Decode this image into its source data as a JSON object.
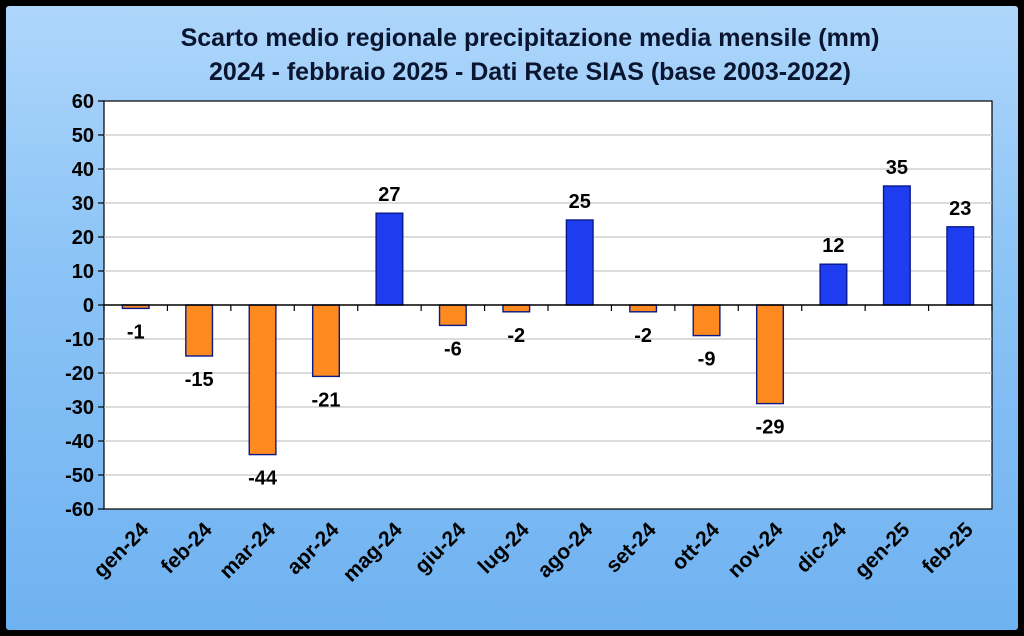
{
  "chart_data": {
    "type": "bar",
    "title": "Scarto medio regionale precipitazione media mensile (mm)",
    "subtitle": "2024 - febbraio 2025 - Dati Rete SIAS (base 2003-2022)",
    "categories": [
      "gen-24",
      "feb-24",
      "mar-24",
      "apr-24",
      "mag-24",
      "giu-24",
      "lug-24",
      "ago-24",
      "set-24",
      "ott-24",
      "nov-24",
      "dic-24",
      "gen-25",
      "feb-25"
    ],
    "values": [
      -1,
      -15,
      -44,
      -21,
      27,
      -6,
      -2,
      25,
      -2,
      -9,
      -29,
      12,
      35,
      23
    ],
    "data_labels": [
      "-1",
      "-15",
      "-44",
      "-21",
      "27",
      "-6",
      "-2",
      "25",
      "-2",
      "-9",
      "-29",
      "12",
      "35",
      "23"
    ],
    "xlabel": "",
    "ylabel": "",
    "ylim": [
      -60,
      60
    ],
    "yticks": [
      60,
      50,
      40,
      30,
      20,
      10,
      0,
      -10,
      -20,
      -30,
      -40,
      -50,
      -60
    ],
    "grid": true,
    "legend": "none",
    "colors": {
      "positive": "#1f3df0",
      "negative": "#ff8a1f",
      "bar_border": "#0a1a8a",
      "plot_bg": "#ffffff",
      "grid": "#b8b8b8"
    }
  }
}
